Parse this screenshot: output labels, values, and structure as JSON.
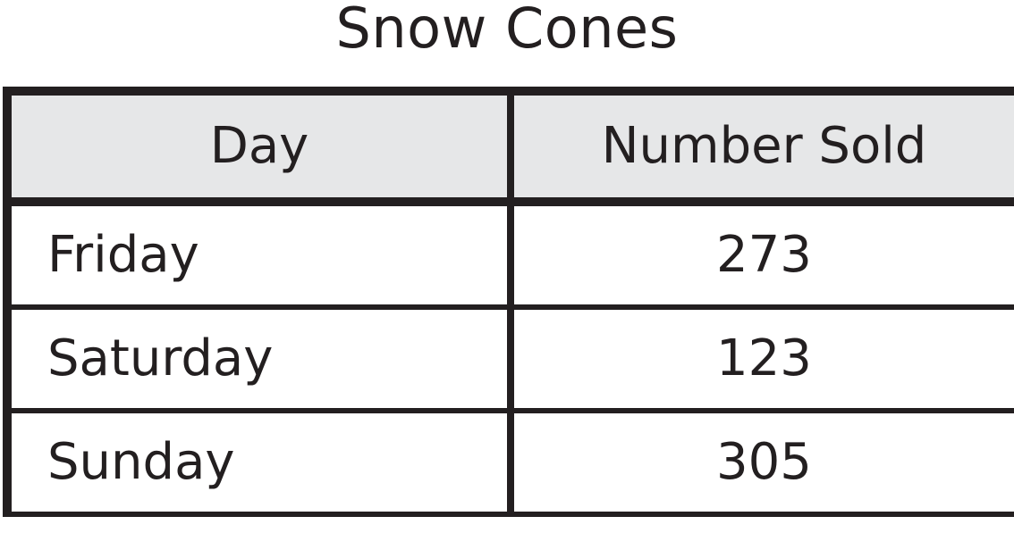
{
  "title": "Snow Cones",
  "table": {
    "headers": [
      "Day",
      "Number Sold"
    ],
    "rows": [
      {
        "day": "Friday",
        "sold": "273"
      },
      {
        "day": "Saturday",
        "sold": "123"
      },
      {
        "day": "Sunday",
        "sold": "305"
      }
    ]
  },
  "colors": {
    "header_bg": "#e6e7e8",
    "border": "#231f20",
    "text": "#231f20"
  }
}
